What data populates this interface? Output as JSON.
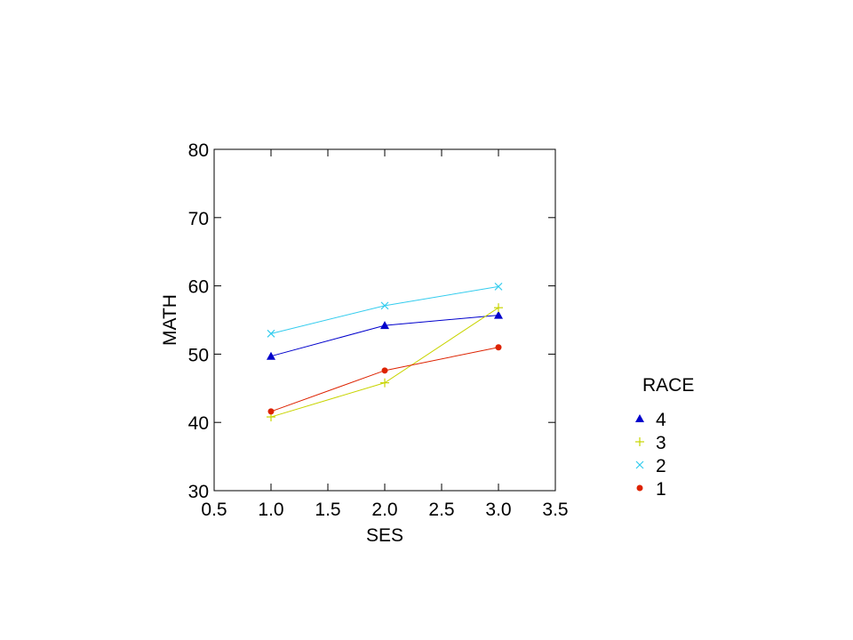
{
  "chart_data": {
    "type": "line",
    "xlabel": "SES",
    "ylabel": "MATH",
    "xlim": [
      0.5,
      3.5
    ],
    "ylim": [
      30,
      80
    ],
    "x_ticks": [
      "0.5",
      "1.0",
      "1.5",
      "2.0",
      "2.5",
      "3.0",
      "3.5"
    ],
    "y_ticks": [
      "30",
      "40",
      "50",
      "60",
      "70",
      "80"
    ],
    "grid": false,
    "legend": {
      "title": "RACE",
      "placement": "right"
    },
    "x": [
      1.0,
      2.0,
      3.0
    ],
    "series": [
      {
        "name": "4",
        "values": [
          49.7,
          54.2,
          55.7
        ],
        "color": "#0000cc",
        "marker": "triangle"
      },
      {
        "name": "3",
        "values": [
          40.8,
          45.8,
          56.8
        ],
        "color": "#c8d400",
        "marker": "plus"
      },
      {
        "name": "2",
        "values": [
          53.0,
          57.1,
          59.9
        ],
        "color": "#33ccee",
        "marker": "cross"
      },
      {
        "name": "1",
        "values": [
          41.6,
          47.6,
          51.0
        ],
        "color": "#dd2200",
        "marker": "circle"
      }
    ]
  }
}
